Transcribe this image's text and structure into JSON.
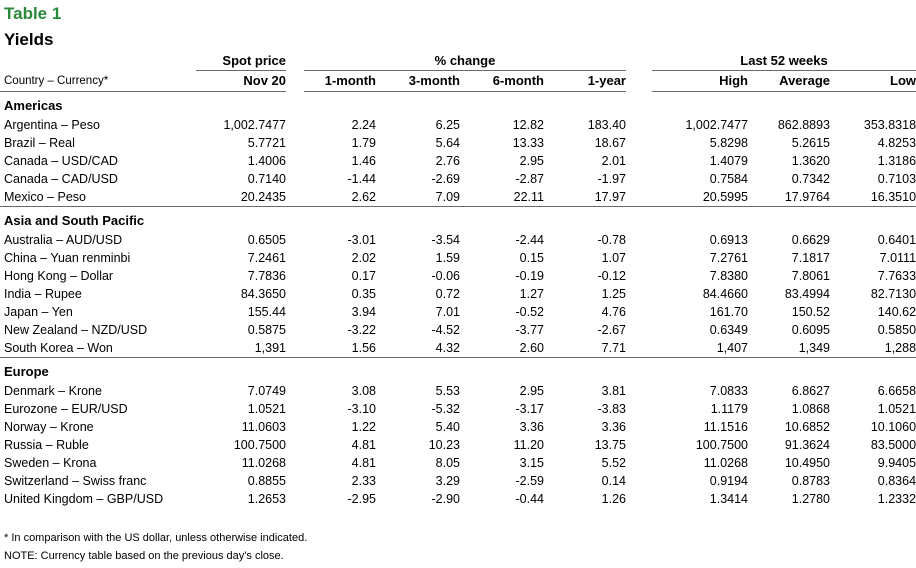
{
  "title": "Table 1",
  "subtitle": "Yields",
  "header": {
    "group_spot": "Spot price",
    "group_change": "% change",
    "group_52": "Last 52 weeks",
    "country_label": "Country – Currency*",
    "cols": [
      "Nov 20",
      "1-month",
      "3-month",
      "6-month",
      "1-year",
      "High",
      "Average",
      "Low"
    ]
  },
  "regions": [
    {
      "name": "Americas",
      "rows": [
        [
          "Argentina – Peso",
          "1,002.7477",
          "2.24",
          "6.25",
          "12.82",
          "183.40",
          "1,002.7477",
          "862.8893",
          "353.8318"
        ],
        [
          "Brazil – Real",
          "5.7721",
          "1.79",
          "5.64",
          "13.33",
          "18.67",
          "5.8298",
          "5.2615",
          "4.8253"
        ],
        [
          "Canada – USD/CAD",
          "1.4006",
          "1.46",
          "2.76",
          "2.95",
          "2.01",
          "1.4079",
          "1.3620",
          "1.3186"
        ],
        [
          "Canada – CAD/USD",
          "0.7140",
          "-1.44",
          "-2.69",
          "-2.87",
          "-1.97",
          "0.7584",
          "0.7342",
          "0.7103"
        ],
        [
          "Mexico – Peso",
          "20.2435",
          "2.62",
          "7.09",
          "22.11",
          "17.97",
          "20.5995",
          "17.9764",
          "16.3510"
        ]
      ]
    },
    {
      "name": "Asia and South Pacific",
      "rows": [
        [
          "Australia – AUD/USD",
          "0.6505",
          "-3.01",
          "-3.54",
          "-2.44",
          "-0.78",
          "0.6913",
          "0.6629",
          "0.6401"
        ],
        [
          "China – Yuan renminbi",
          "7.2461",
          "2.02",
          "1.59",
          "0.15",
          "1.07",
          "7.2761",
          "7.1817",
          "7.0111"
        ],
        [
          "Hong Kong – Dollar",
          "7.7836",
          "0.17",
          "-0.06",
          "-0.19",
          "-0.12",
          "7.8380",
          "7.8061",
          "7.7633"
        ],
        [
          "India – Rupee",
          "84.3650",
          "0.35",
          "0.72",
          "1.27",
          "1.25",
          "84.4660",
          "83.4994",
          "82.7130"
        ],
        [
          "Japan – Yen",
          "155.44",
          "3.94",
          "7.01",
          "-0.52",
          "4.76",
          "161.70",
          "150.52",
          "140.62"
        ],
        [
          "New Zealand – NZD/USD",
          "0.5875",
          "-3.22",
          "-4.52",
          "-3.77",
          "-2.67",
          "0.6349",
          "0.6095",
          "0.5850"
        ],
        [
          "South Korea – Won",
          "1,391",
          "1.56",
          "4.32",
          "2.60",
          "7.71",
          "1,407",
          "1,349",
          "1,288"
        ]
      ]
    },
    {
      "name": "Europe",
      "rows": [
        [
          "Denmark – Krone",
          "7.0749",
          "3.08",
          "5.53",
          "2.95",
          "3.81",
          "7.0833",
          "6.8627",
          "6.6658"
        ],
        [
          "Eurozone – EUR/USD",
          "1.0521",
          "-3.10",
          "-5.32",
          "-3.17",
          "-3.83",
          "1.1179",
          "1.0868",
          "1.0521"
        ],
        [
          "Norway – Krone",
          "11.0603",
          "1.22",
          "5.40",
          "3.36",
          "3.36",
          "11.1516",
          "10.6852",
          "10.1060"
        ],
        [
          "Russia – Ruble",
          "100.7500",
          "4.81",
          "10.23",
          "11.20",
          "13.75",
          "100.7500",
          "91.3624",
          "83.5000"
        ],
        [
          "Sweden – Krona",
          "11.0268",
          "4.81",
          "8.05",
          "3.15",
          "5.52",
          "11.0268",
          "10.4950",
          "9.9405"
        ],
        [
          "Switzerland – Swiss franc",
          "0.8855",
          "2.33",
          "3.29",
          "-2.59",
          "0.14",
          "0.9194",
          "0.8783",
          "0.8364"
        ],
        [
          "United Kingdom – GBP/USD",
          "1.2653",
          "-2.95",
          "-2.90",
          "-0.44",
          "1.26",
          "1.3414",
          "1.2780",
          "1.2332"
        ]
      ]
    }
  ],
  "footnotes": [
    "* In comparison with the US dollar, unless otherwise indicated.",
    "NOTE: Currency table based on the previous day's close."
  ]
}
